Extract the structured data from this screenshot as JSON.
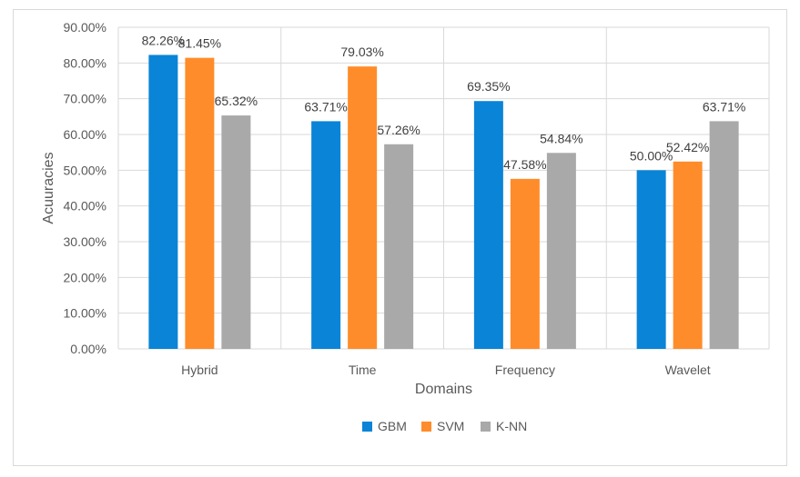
{
  "chart_data": {
    "type": "bar",
    "title": "",
    "xlabel": "Domains",
    "ylabel": "Acuuracies",
    "categories": [
      "Hybrid",
      "Time",
      "Frequency",
      "Wavelet"
    ],
    "series": [
      {
        "name": "GBM",
        "color": "#0a84d6",
        "values": [
          82.26,
          63.71,
          69.35,
          50.0
        ],
        "labels": [
          "82.26%",
          "63.71%",
          "69.35%",
          "50.00%"
        ]
      },
      {
        "name": "SVM",
        "color": "#ff8c2a",
        "values": [
          81.45,
          79.03,
          47.58,
          52.42
        ],
        "labels": [
          "81.45%",
          "79.03%",
          "47.58%",
          "52.42%"
        ]
      },
      {
        "name": "K-NN",
        "color": "#a9a9a9",
        "values": [
          65.32,
          57.26,
          54.84,
          63.71
        ],
        "labels": [
          "65.32%",
          "57.26%",
          "54.84%",
          "63.71%"
        ]
      }
    ],
    "ylim": [
      0,
      90
    ],
    "yticks": [
      0,
      10,
      20,
      30,
      40,
      50,
      60,
      70,
      80,
      90
    ],
    "ytick_labels": [
      "0.00%",
      "10.00%",
      "20.00%",
      "30.00%",
      "40.00%",
      "50.00%",
      "60.00%",
      "70.00%",
      "80.00%",
      "90.00%"
    ],
    "grid": true,
    "legend_position": "bottom"
  }
}
